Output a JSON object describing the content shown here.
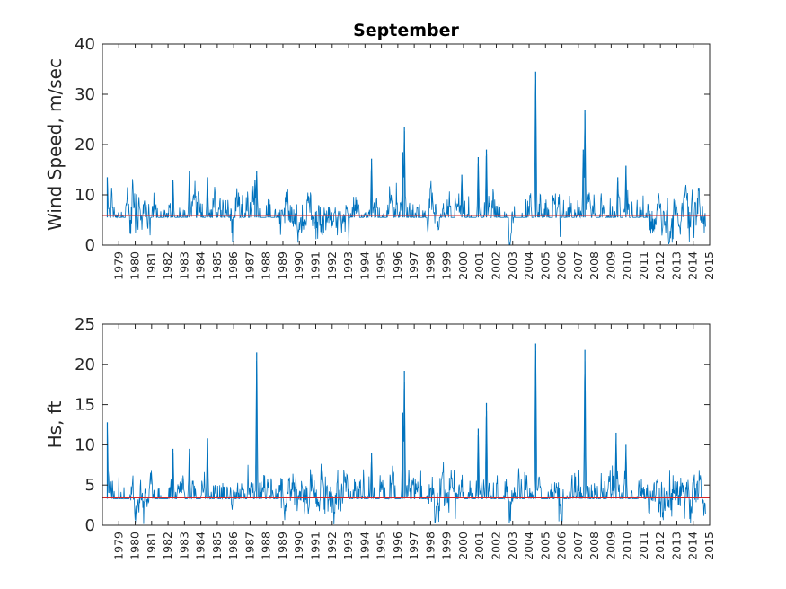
{
  "figure": {
    "background": "#ffffff",
    "axis_color": "#262626",
    "series_color": "#0072bd",
    "mean_color": "#d62728"
  },
  "chart_data": [
    {
      "type": "line",
      "title": "September",
      "xlabel": "",
      "ylabel": "Wind Speed, m/sec",
      "ylim": [
        0,
        40
      ],
      "yticks": [
        0,
        10,
        20,
        30,
        40
      ],
      "xlim": [
        1978.7,
        2015.7
      ],
      "xtick_labels": [
        "1979",
        "1980",
        "1981",
        "1982",
        "1983",
        "1984",
        "1985",
        "1986",
        "1987",
        "1988",
        "1989",
        "1990",
        "1991",
        "1992",
        "1993",
        "1994",
        "1995",
        "1996",
        "1997",
        "1998",
        "1999",
        "2000",
        "2001",
        "2002",
        "2003",
        "2004",
        "2005",
        "2006",
        "2007",
        "2008",
        "2009",
        "2010",
        "2011",
        "2012",
        "2013",
        "2014",
        "2015"
      ],
      "grid": false,
      "series": [
        {
          "role": "hourly series",
          "baseline": 5.5,
          "variability": 2.6,
          "peaks": [
            {
              "x": 1979.0,
              "y": 13.5
            },
            {
              "x": 1983.0,
              "y": 13.0
            },
            {
              "x": 1984.0,
              "y": 14.8
            },
            {
              "x": 1985.1,
              "y": 13.5
            },
            {
              "x": 1988.1,
              "y": 14.8
            },
            {
              "x": 1988.0,
              "y": 13.0
            },
            {
              "x": 1995.1,
              "y": 17.2
            },
            {
              "x": 1997.1,
              "y": 23.5
            },
            {
              "x": 1997.0,
              "y": 18.5
            },
            {
              "x": 2001.6,
              "y": 17.5
            },
            {
              "x": 2002.1,
              "y": 19.0
            },
            {
              "x": 2005.1,
              "y": 34.5
            },
            {
              "x": 2008.1,
              "y": 26.8
            },
            {
              "x": 2008.0,
              "y": 19.0
            },
            {
              "x": 2010.6,
              "y": 15.8
            },
            {
              "x": 2010.1,
              "y": 13.5
            },
            {
              "x": 2000.6,
              "y": 14.0
            }
          ]
        },
        {
          "role": "mean",
          "y": 5.9
        }
      ]
    },
    {
      "type": "line",
      "title": "",
      "xlabel": "",
      "ylabel": "Hs, ft",
      "ylim": [
        0,
        25
      ],
      "yticks": [
        0,
        5,
        10,
        15,
        20,
        25
      ],
      "xlim": [
        1978.7,
        2015.7
      ],
      "xtick_labels": [
        "1979",
        "1980",
        "1981",
        "1982",
        "1983",
        "1984",
        "1985",
        "1986",
        "1987",
        "1988",
        "1989",
        "1990",
        "1991",
        "1992",
        "1993",
        "1994",
        "1995",
        "1996",
        "1997",
        "1998",
        "1999",
        "2000",
        "2001",
        "2002",
        "2003",
        "2004",
        "2005",
        "2006",
        "2007",
        "2008",
        "2009",
        "2010",
        "2011",
        "2012",
        "2013",
        "2014",
        "2015"
      ],
      "grid": false,
      "series": [
        {
          "role": "hourly series",
          "baseline": 3.3,
          "variability": 1.6,
          "peaks": [
            {
              "x": 1979.0,
              "y": 12.8
            },
            {
              "x": 1983.0,
              "y": 9.5
            },
            {
              "x": 1984.0,
              "y": 9.5
            },
            {
              "x": 1985.1,
              "y": 10.8
            },
            {
              "x": 1988.1,
              "y": 21.5
            },
            {
              "x": 1995.1,
              "y": 9.0
            },
            {
              "x": 1997.1,
              "y": 19.2
            },
            {
              "x": 1997.0,
              "y": 14.0
            },
            {
              "x": 2001.6,
              "y": 12.0
            },
            {
              "x": 2002.1,
              "y": 15.2
            },
            {
              "x": 2005.1,
              "y": 22.6
            },
            {
              "x": 2008.1,
              "y": 21.8
            },
            {
              "x": 2010.6,
              "y": 10.0
            },
            {
              "x": 2010.0,
              "y": 11.5
            }
          ]
        },
        {
          "role": "mean",
          "y": 3.4
        }
      ]
    }
  ]
}
